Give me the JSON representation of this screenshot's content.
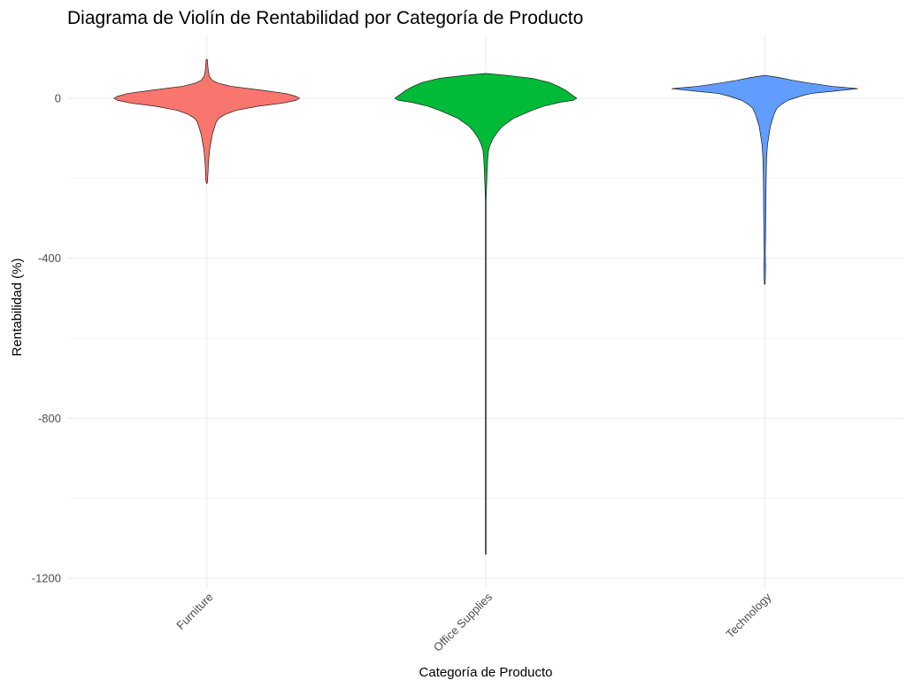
{
  "chart_data": {
    "type": "violin",
    "title": "Diagrama de Violín de Rentabilidad por Categoría de Producto",
    "xlabel": "Categoría de Producto",
    "ylabel": "Rentabilidad (%)",
    "ylim": [
      -1240,
      160
    ],
    "yticks": [
      0,
      -400,
      -800,
      -1200
    ],
    "ytick_labels": [
      "0",
      "-400",
      "-800",
      "-1200"
    ],
    "grid": true,
    "legend": "none",
    "categories": [
      "Furniture",
      "Office Supplies",
      "Technology"
    ],
    "series": [
      {
        "category": "Furniture",
        "color": "#F8766D",
        "max": 97,
        "min": -213,
        "profile": [
          [
            97,
            0.6
          ],
          [
            85,
            1.0
          ],
          [
            70,
            1.6
          ],
          [
            55,
            2.8
          ],
          [
            45,
            6
          ],
          [
            38,
            12
          ],
          [
            30,
            26
          ],
          [
            20,
            60
          ],
          [
            12,
            85
          ],
          [
            5,
            96
          ],
          [
            0,
            100
          ],
          [
            -5,
            96
          ],
          [
            -12,
            82
          ],
          [
            -20,
            55
          ],
          [
            -30,
            32
          ],
          [
            -40,
            20
          ],
          [
            -50,
            13
          ],
          [
            -60,
            10
          ],
          [
            -75,
            8
          ],
          [
            -90,
            6
          ],
          [
            -110,
            4.5
          ],
          [
            -130,
            3
          ],
          [
            -150,
            2.2
          ],
          [
            -170,
            1.6
          ],
          [
            -185,
            1.4
          ],
          [
            -195,
            1.1
          ],
          [
            -205,
            0.9
          ],
          [
            -213,
            0.4
          ]
        ]
      },
      {
        "category": "Office Supplies",
        "color": "#00BA38",
        "max": 62,
        "min": -1140,
        "profile": [
          [
            62,
            0.5
          ],
          [
            58,
            20
          ],
          [
            50,
            50
          ],
          [
            40,
            68
          ],
          [
            30,
            78
          ],
          [
            20,
            86
          ],
          [
            10,
            92
          ],
          [
            0,
            98
          ],
          [
            -5,
            94
          ],
          [
            -10,
            80
          ],
          [
            -20,
            62
          ],
          [
            -30,
            50
          ],
          [
            -40,
            40
          ],
          [
            -50,
            30
          ],
          [
            -60,
            24
          ],
          [
            -70,
            18
          ],
          [
            -80,
            14
          ],
          [
            -90,
            11
          ],
          [
            -100,
            8
          ],
          [
            -115,
            5
          ],
          [
            -130,
            3
          ],
          [
            -150,
            2.2
          ],
          [
            -170,
            1.7
          ],
          [
            -200,
            1.2
          ],
          [
            -230,
            0.7
          ],
          [
            -260,
            0.25
          ],
          [
            -400,
            0.2
          ],
          [
            -800,
            0.2
          ],
          [
            -1100,
            0.2
          ],
          [
            -1140,
            0.1
          ]
        ]
      },
      {
        "category": "Technology",
        "color": "#619CFF",
        "max": 57,
        "min": -465,
        "profile": [
          [
            57,
            0.5
          ],
          [
            52,
            15
          ],
          [
            45,
            30
          ],
          [
            38,
            48
          ],
          [
            30,
            72
          ],
          [
            24,
            100
          ],
          [
            18,
            75
          ],
          [
            12,
            50
          ],
          [
            5,
            38
          ],
          [
            -5,
            25
          ],
          [
            -15,
            18
          ],
          [
            -25,
            13
          ],
          [
            -40,
            10
          ],
          [
            -55,
            8
          ],
          [
            -70,
            6
          ],
          [
            -85,
            5
          ],
          [
            -100,
            4
          ],
          [
            -115,
            3
          ],
          [
            -130,
            2.5
          ],
          [
            -150,
            2
          ],
          [
            -170,
            1.8
          ],
          [
            -200,
            1.5
          ],
          [
            -240,
            1.3
          ],
          [
            -280,
            1.2
          ],
          [
            -320,
            1.0
          ],
          [
            -360,
            0.8
          ],
          [
            -390,
            0.6
          ],
          [
            -420,
            0.9
          ],
          [
            -450,
            0.6
          ],
          [
            -465,
            0.3
          ]
        ]
      }
    ]
  }
}
